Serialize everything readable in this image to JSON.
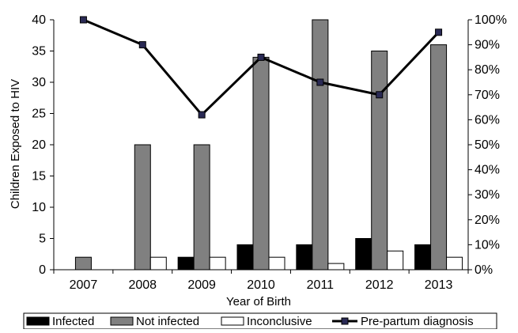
{
  "chart_data": {
    "type": "bar",
    "title": "",
    "xlabel": "Year of Birth",
    "ylabel": "Children Exposed to HIV",
    "y2label": "",
    "categories": [
      "2007",
      "2008",
      "2009",
      "2010",
      "2011",
      "2012",
      "2013"
    ],
    "ylim": [
      0,
      40
    ],
    "yticks": [
      "0",
      "5",
      "10",
      "15",
      "20",
      "25",
      "30",
      "35",
      "40"
    ],
    "y2lim": [
      0,
      100
    ],
    "y2ticks": [
      "0%",
      "10%",
      "20%",
      "30%",
      "40%",
      "50%",
      "60%",
      "70%",
      "80%",
      "90%",
      "100%"
    ],
    "grid": false,
    "legend_position": "bottom",
    "series": [
      {
        "name": "Infected",
        "kind": "bar",
        "axis": "left",
        "color": "#000000",
        "values": [
          0,
          0,
          2,
          4,
          4,
          5,
          4
        ]
      },
      {
        "name": "Not infected",
        "kind": "bar",
        "axis": "left",
        "color": "#808080",
        "values": [
          2,
          20,
          20,
          34,
          40,
          35,
          36
        ]
      },
      {
        "name": "Inconclusive",
        "kind": "bar",
        "axis": "left",
        "color": "#ffffff",
        "values": [
          0,
          2,
          2,
          2,
          1,
          3,
          2
        ]
      },
      {
        "name": "Pre-partum diagnosis",
        "kind": "line",
        "axis": "right",
        "color": "#000000",
        "marker_color": "#2a2a55",
        "values": [
          100,
          90,
          62,
          85,
          75,
          70,
          95
        ]
      }
    ]
  }
}
